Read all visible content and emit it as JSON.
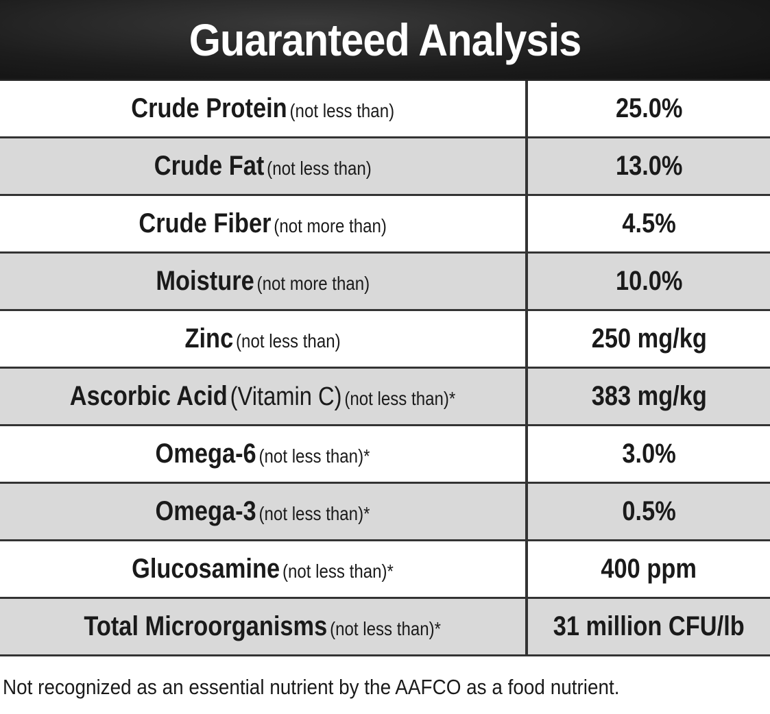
{
  "header": {
    "title": "Guaranteed Analysis"
  },
  "table": {
    "rows": [
      {
        "name": "Crude Protein",
        "qualifier": "(not less than)",
        "value": "25.0%"
      },
      {
        "name": "Crude Fat",
        "qualifier": "(not less than)",
        "value": "13.0%"
      },
      {
        "name": "Crude Fiber",
        "qualifier": "(not more than)",
        "value": "4.5%"
      },
      {
        "name": "Moisture",
        "qualifier": "(not more than)",
        "value": "10.0%"
      },
      {
        "name": "Zinc",
        "qualifier": "(not less than)",
        "value": "250 mg/kg"
      },
      {
        "name": "Ascorbic Acid",
        "extra": "(Vitamin C)",
        "qualifier": "(not less than)*",
        "value": "383 mg/kg"
      },
      {
        "name": "Omega-6",
        "qualifier": "(not less than)*",
        "value": "3.0%"
      },
      {
        "name": "Omega-3",
        "qualifier": "(not less than)*",
        "value": "0.5%"
      },
      {
        "name": "Glucosamine",
        "qualifier": "(not less than)*",
        "value": "400 ppm"
      },
      {
        "name": "Total Microorganisms",
        "qualifier": "(not less than)*",
        "value": "31 million CFU/lb"
      }
    ]
  },
  "footnote": "Not recognized as an essential nutrient by the AAFCO as a food nutrient."
}
